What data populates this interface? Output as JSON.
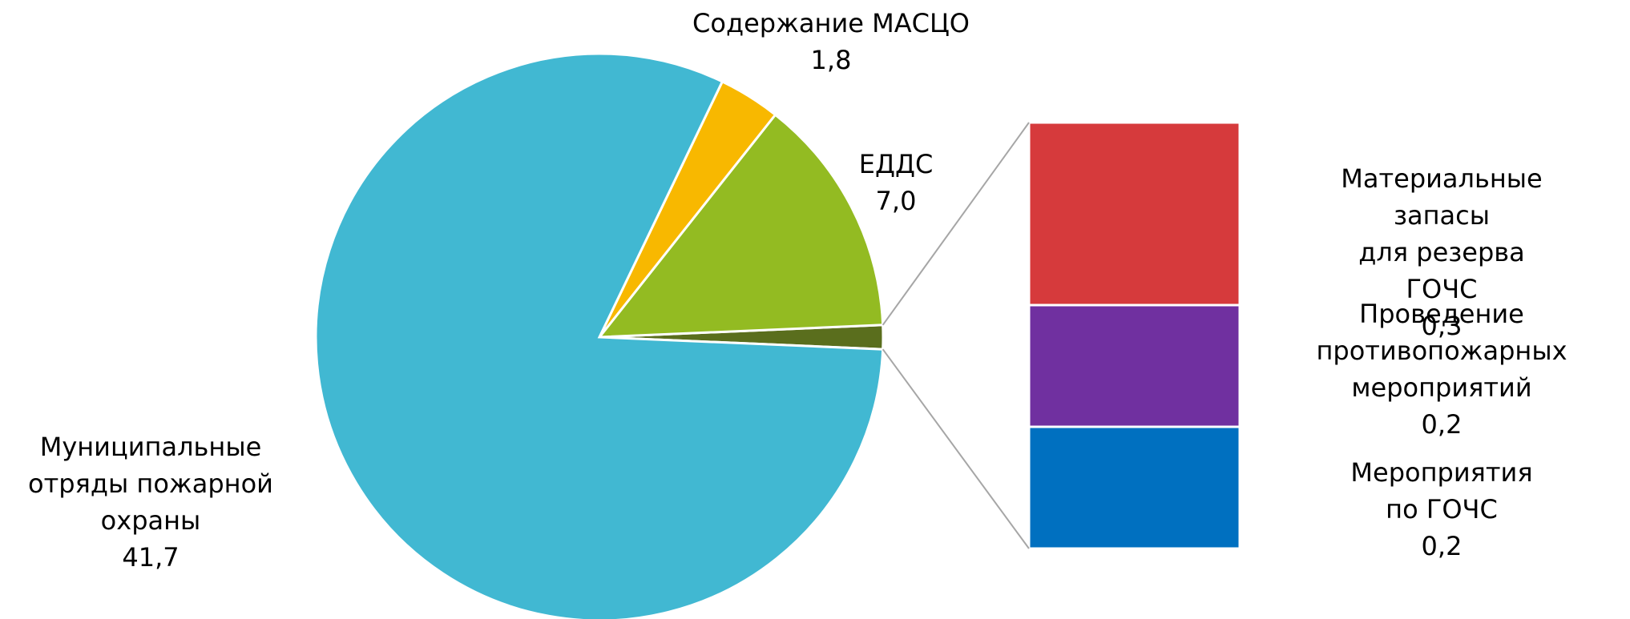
{
  "chart_data": {
    "type": "pie",
    "categories": [
      null,
      "ЕДДС",
      "Содержание МАСЦО",
      "Муниципальные\nотряды пожарной\nохраны"
    ],
    "values": [
      0.7,
      7.0,
      1.8,
      41.7
    ],
    "value_labels": [
      null,
      "7,0",
      "1,8",
      "41,7"
    ],
    "colors": [
      "#5a6e1d",
      "#93bb22",
      "#f8b800",
      "#41b8d2"
    ],
    "breakdown": {
      "categories": [
        "Материальные запасы\nдля резерва ГОЧС",
        "Проведение\nпротивопожарных\nмероприятий",
        "Мероприятия по ГОЧС"
      ],
      "values": [
        0.3,
        0.2,
        0.2
      ],
      "value_labels": [
        "0,3",
        "0,2",
        "0,2"
      ],
      "colors": [
        "#d63a3c",
        "#7030a0",
        "#0070c0"
      ]
    }
  }
}
